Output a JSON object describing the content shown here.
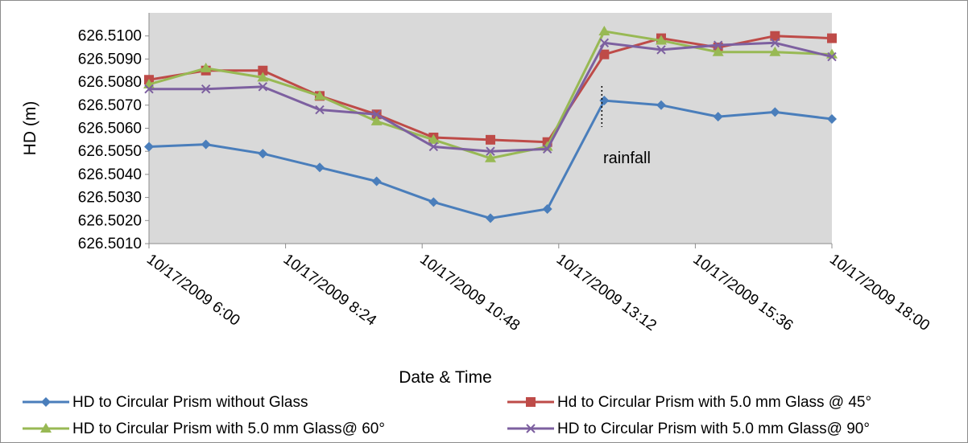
{
  "chart_data": {
    "type": "line",
    "xlabel": "Date & Time",
    "ylabel": "HD (m)",
    "ylim": [
      626.501,
      626.511
    ],
    "y_ticks": [
      "626.5010",
      "626.5020",
      "626.5030",
      "626.5040",
      "626.5050",
      "626.5060",
      "626.5070",
      "626.5080",
      "626.5090",
      "626.5100"
    ],
    "x_ticks": [
      "10/17/2009 6:00",
      "10/17/2009 8:24",
      "10/17/2009 10:48",
      "10/17/2009 13:12",
      "10/17/2009 15:36",
      "10/17/2009 18:00"
    ],
    "x_range_hours": [
      6,
      18
    ],
    "x_hours": [
      6,
      7,
      8,
      9,
      10,
      11,
      12,
      13,
      14,
      15,
      16,
      17,
      18
    ],
    "grid": false,
    "plot_background": "#d9d9d9",
    "legend_position": "bottom",
    "annotation": {
      "text": "rainfall",
      "x_hour": 14
    },
    "series": [
      {
        "name": "HD to Circular Prism without Glass",
        "color": "#4a7ebb",
        "marker": "diamond",
        "values": [
          626.5052,
          626.5053,
          626.5049,
          626.5043,
          626.5037,
          626.5028,
          626.5021,
          626.5025,
          626.5072,
          626.507,
          626.5065,
          626.5067,
          626.5064
        ]
      },
      {
        "name": "Hd to Circular Prism  with 5.0 mm Glass @ 45°",
        "color": "#be4b48",
        "marker": "square",
        "values": [
          626.5081,
          626.5085,
          626.5085,
          626.5074,
          626.5066,
          626.5056,
          626.5055,
          626.5054,
          626.5092,
          626.5099,
          626.5095,
          626.51,
          626.5099
        ]
      },
      {
        "name": "HD to Circular Prism  with 5.0 mm Glass@ 60°",
        "color": "#98b954",
        "marker": "triangle",
        "values": [
          626.5079,
          626.5086,
          626.5082,
          626.5074,
          626.5063,
          626.5055,
          626.5047,
          626.5052,
          626.5102,
          626.5098,
          626.5093,
          626.5093,
          626.5092
        ]
      },
      {
        "name": "HD to Circular Prism with 5.0 mm Glass@ 90°",
        "color": "#7d60a0",
        "marker": "x",
        "values": [
          626.5077,
          626.5077,
          626.5078,
          626.5068,
          626.5066,
          626.5052,
          626.505,
          626.5051,
          626.5097,
          626.5094,
          626.5096,
          626.5097,
          626.5091
        ]
      }
    ]
  }
}
